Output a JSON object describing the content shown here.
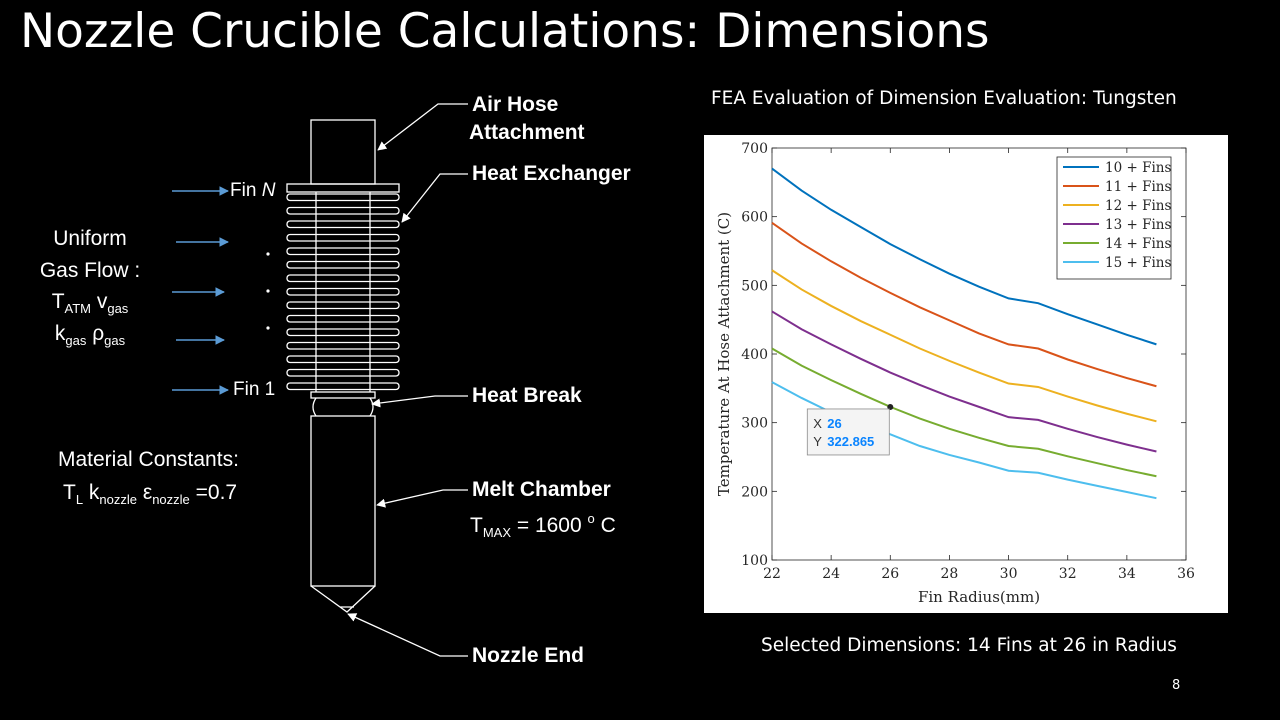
{
  "slide": {
    "title": "Nozzle Crucible Calculations: Dimensions",
    "page_number": "8"
  },
  "diagram": {
    "labels": {
      "air_hose_1": "Air Hose",
      "air_hose_2": "Attachment",
      "heat_exchanger": "Heat Exchanger",
      "heat_break": "Heat Break",
      "melt_chamber": "Melt Chamber",
      "nozzle_end": "Nozzle End"
    },
    "fin_top": "Fin",
    "fin_top_var": "N",
    "fin_bottom": "Fin 1",
    "gas_flow": {
      "line1": "Uniform",
      "line2": "Gas Flow :",
      "t": "T",
      "t_sub": "ATM",
      "v": "v",
      "v_sub": "gas",
      "k": "k",
      "k_sub": "gas",
      "rho": "ρ",
      "rho_sub": "gas"
    },
    "material": {
      "title": "Material Constants:",
      "t": "T",
      "t_sub": "L",
      "k": "k",
      "k_sub": "nozzle",
      "eps": "ε",
      "eps_sub": "nozzle",
      "eps_value": "=0.7"
    },
    "tmax": {
      "t": "T",
      "sub": "MAX",
      "value": "= 1600",
      "sup": "o",
      "unit": "C"
    }
  },
  "fea_title": "FEA Evaluation of Dimension Evaluation: Tungsten",
  "selected_text": "Selected Dimensions: 14 Fins at 26 in Radius",
  "chart_data": {
    "type": "line",
    "xlabel": "Fin Radius(mm)",
    "ylabel": "Temperature At Hose Attachment (C)",
    "xlim": [
      22,
      36
    ],
    "ylim": [
      100,
      700
    ],
    "xticks": [
      22,
      24,
      26,
      28,
      30,
      32,
      34,
      36
    ],
    "yticks": [
      100,
      200,
      300,
      400,
      500,
      600,
      700
    ],
    "legend_position": "top-right",
    "x": [
      22,
      23,
      24,
      25,
      26,
      27,
      28,
      29,
      30,
      31,
      32,
      33,
      34,
      35
    ],
    "series": [
      {
        "name": "10 + Fins",
        "color": "#0072BD",
        "values": [
          670,
          638,
          610,
          585,
          560,
          538,
          517,
          498,
          481,
          474,
          458,
          443,
          428,
          414
        ]
      },
      {
        "name": "11 + Fins",
        "color": "#D95319",
        "values": [
          591,
          561,
          535,
          511,
          489,
          468,
          449,
          430,
          414,
          408,
          392,
          378,
          365,
          353
        ]
      },
      {
        "name": "12 + Fins",
        "color": "#EDB120",
        "values": [
          522,
          494,
          470,
          448,
          428,
          408,
          390,
          373,
          357,
          352,
          338,
          325,
          313,
          302
        ]
      },
      {
        "name": "13 + Fins",
        "color": "#7E2F8E",
        "values": [
          462,
          436,
          414,
          393,
          373,
          355,
          338,
          323,
          308,
          304,
          291,
          279,
          268,
          258
        ]
      },
      {
        "name": "14 + Fins",
        "color": "#77AC30",
        "values": [
          408,
          383,
          362,
          342,
          323,
          306,
          291,
          278,
          266,
          262,
          251,
          241,
          231,
          222
        ]
      },
      {
        "name": "15 + Fins",
        "color": "#4DBEEE",
        "values": [
          359,
          336,
          315,
          298,
          283,
          266,
          253,
          242,
          230,
          227,
          217,
          208,
          199,
          190
        ]
      }
    ],
    "datatip": {
      "x_label": "X",
      "x_value": "26",
      "y_label": "Y",
      "y_value": "322.865",
      "x": 26,
      "y": 322.865
    }
  }
}
